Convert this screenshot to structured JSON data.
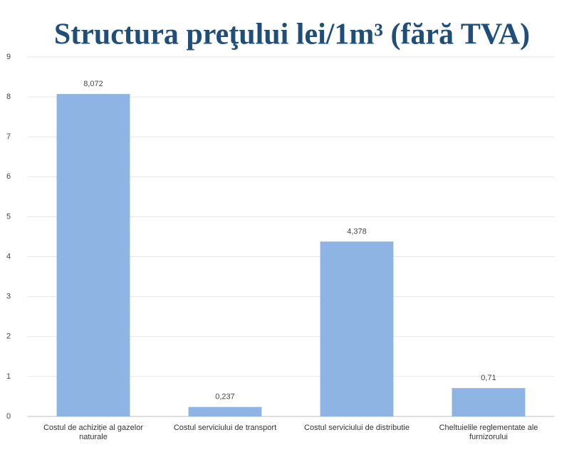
{
  "chart_data": {
    "type": "bar",
    "title": "Structura preţului lei/1m³ (fără TVA)",
    "categories": [
      "Costul de achiziție al gazelor naturale",
      "Costul serviciului de transport",
      "Costul serviciului de distributie",
      "Cheltuielile reglementate ale furnizorului"
    ],
    "values": [
      8.072,
      0.237,
      4.378,
      0.71
    ],
    "value_labels": [
      "8,072",
      "0,237",
      "4,378",
      "0,71"
    ],
    "color": "#8db4e2",
    "ylim": [
      0,
      9
    ],
    "yticks": [
      0,
      1,
      2,
      3,
      4,
      5,
      6,
      7,
      8,
      9
    ],
    "grid": true
  }
}
